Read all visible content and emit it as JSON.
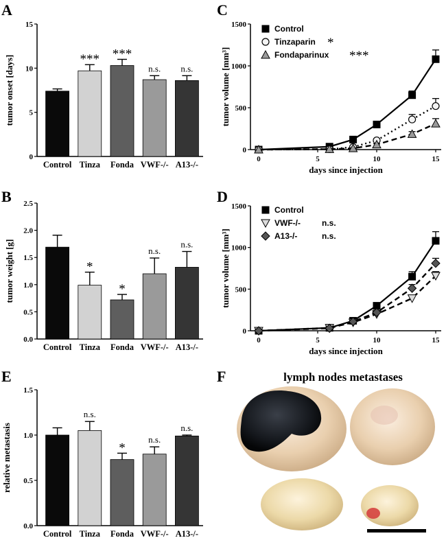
{
  "colors": {
    "control": "#0a0a0a",
    "tinza": "#d2d2d2",
    "fonda": "#5e5e5e",
    "vwf": "#9a9a9a",
    "a13": "#353535"
  },
  "panels": {
    "A": "A",
    "B": "B",
    "C": "C",
    "D": "D",
    "E": "E",
    "F": "F"
  },
  "chart_data": [
    {
      "id": "A",
      "type": "bar",
      "categories": [
        "Control",
        "Tinza",
        "Fonda",
        "VWF-/-",
        "A13-/-"
      ],
      "values": [
        7.4,
        9.7,
        10.3,
        8.7,
        8.6
      ],
      "errors": [
        0.25,
        0.7,
        0.7,
        0.45,
        0.55
      ],
      "significance": [
        "",
        "***",
        "***",
        "n.s.",
        "n.s."
      ],
      "ylabel": "tumor onset [days]",
      "ylim": [
        0,
        15
      ],
      "yticks": [
        "0",
        "5",
        "10",
        "15"
      ]
    },
    {
      "id": "B",
      "type": "bar",
      "categories": [
        "Control",
        "Tinza",
        "Fonda",
        "VWF-/-",
        "A13-/-"
      ],
      "values": [
        1.69,
        0.99,
        0.72,
        1.2,
        1.32
      ],
      "errors": [
        0.22,
        0.24,
        0.1,
        0.29,
        0.29
      ],
      "significance": [
        "",
        "*",
        "*",
        "n.s.",
        "n.s."
      ],
      "ylabel": "tumor weight [g]",
      "ylim": [
        0,
        2.5
      ],
      "yticks": [
        "0.0",
        "0.5",
        "1.0",
        "1.5",
        "2.0",
        "2.5"
      ]
    },
    {
      "id": "E",
      "type": "bar",
      "categories": [
        "Control",
        "Tinza",
        "Fonda",
        "VWF-/-",
        "A13-/-"
      ],
      "values": [
        1.0,
        1.05,
        0.73,
        0.79,
        0.99
      ],
      "errors": [
        0.08,
        0.1,
        0.07,
        0.08,
        0.01
      ],
      "significance": [
        "",
        "n.s.",
        "*",
        "n.s.",
        "n.s."
      ],
      "ylabel": "relative metastasis",
      "ylim": [
        0,
        1.5
      ],
      "yticks": [
        "0.0",
        "0.5",
        "1.0",
        "1.5"
      ]
    },
    {
      "id": "C",
      "type": "line",
      "x": [
        0,
        6,
        8,
        10,
        13,
        15
      ],
      "xlabel": "days since injection",
      "ylabel": "tumor volume [mm³]",
      "xlim": [
        0,
        15
      ],
      "ylim": [
        0,
        1500
      ],
      "xticks": [
        "0",
        "5",
        "10",
        "15"
      ],
      "yticks": [
        "0",
        "500",
        "1000",
        "1500"
      ],
      "series": [
        {
          "name": "Control",
          "marker": "square",
          "line": "solid",
          "sig": "",
          "values": [
            0,
            35,
            120,
            300,
            650,
            1080
          ],
          "errors": [
            0,
            10,
            20,
            30,
            50,
            110
          ]
        },
        {
          "name": "Tinzaparin",
          "marker": "circle",
          "line": "dotted",
          "sig": "*",
          "values": [
            0,
            5,
            30,
            110,
            360,
            520
          ],
          "errors": [
            0,
            5,
            10,
            20,
            60,
            90
          ]
        },
        {
          "name": "Fondaparinux",
          "marker": "triangle",
          "line": "dashed",
          "sig": "***",
          "values": [
            0,
            5,
            15,
            60,
            185,
            310
          ],
          "errors": [
            0,
            5,
            5,
            10,
            30,
            60
          ]
        }
      ]
    },
    {
      "id": "D",
      "type": "line",
      "x": [
        0,
        6,
        8,
        10,
        13,
        15
      ],
      "xlabel": "days since injection",
      "ylabel": "tumor volume [mm³]",
      "xlim": [
        0,
        15
      ],
      "ylim": [
        0,
        1500
      ],
      "xticks": [
        "0",
        "5",
        "10",
        "15"
      ],
      "yticks": [
        "0",
        "500",
        "1000",
        "1500"
      ],
      "series": [
        {
          "name": "Control",
          "marker": "square",
          "line": "solid",
          "sig": "",
          "values": [
            0,
            35,
            120,
            300,
            650,
            1080
          ],
          "errors": [
            0,
            10,
            20,
            30,
            60,
            110
          ]
        },
        {
          "name": "VWF-/-",
          "marker": "triangle-down",
          "line": "dashed",
          "sig": "n.s.",
          "values": [
            0,
            35,
            100,
            200,
            390,
            660
          ],
          "errors": [
            0,
            8,
            15,
            25,
            35,
            50
          ]
        },
        {
          "name": "A13-/-",
          "marker": "diamond",
          "line": "dashed",
          "sig": "n.s.",
          "values": [
            0,
            30,
            110,
            220,
            510,
            810
          ],
          "errors": [
            0,
            8,
            15,
            25,
            45,
            60
          ]
        }
      ]
    }
  ],
  "photo": {
    "title": "lymph nodes metastases"
  }
}
